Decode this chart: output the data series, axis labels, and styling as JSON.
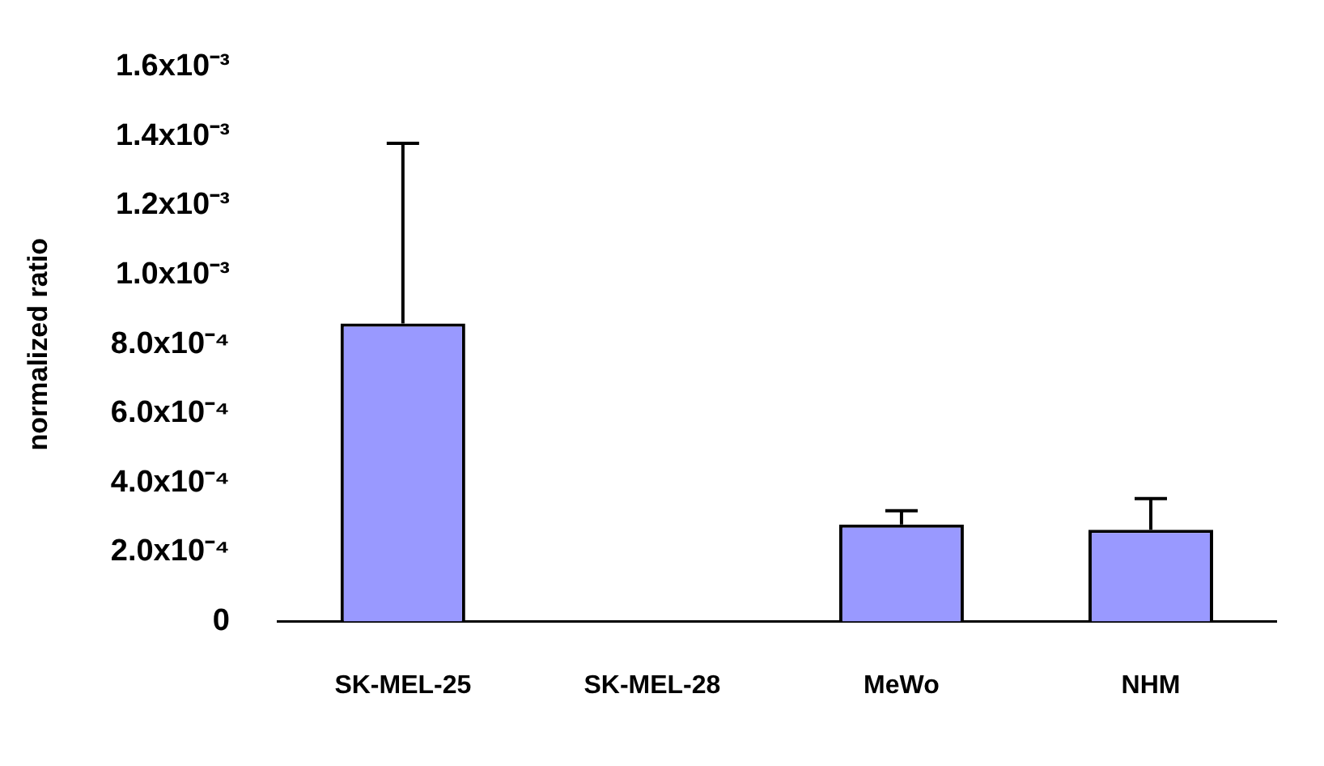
{
  "chart_data": {
    "type": "bar",
    "ylabel": "normalized ratio",
    "categories": [
      "SK-MEL-25",
      "SK-MEL-28",
      "MeWo",
      "NHM"
    ],
    "series": [
      {
        "color": "#9999ff",
        "values": [
          0.00086,
          0,
          0.00028,
          0.000265
        ],
        "errors": [
          0.00052,
          null,
          4e-05,
          9e-05
        ]
      }
    ],
    "ylim": [
      0,
      0.0016
    ],
    "yticks": [
      0,
      {
        "value": 0.0002,
        "label": "2.0x10⁻⁴"
      },
      {
        "value": 0.0004,
        "label": "4.0x10⁻⁴"
      },
      {
        "value": 0.0006,
        "label": "6.0x10⁻⁴"
      },
      {
        "value": 0.0008,
        "label": "8.0x10⁻⁴"
      },
      {
        "value": 0.001,
        "label": "1.0x10⁻³"
      },
      {
        "value": 0.0012,
        "label": "1.2x10⁻³"
      },
      {
        "value": 0.0014,
        "label": "1.4x10⁻³"
      },
      {
        "value": 0.0016,
        "label": "1.6x10⁻³"
      }
    ],
    "grid": false,
    "legend": false
  }
}
